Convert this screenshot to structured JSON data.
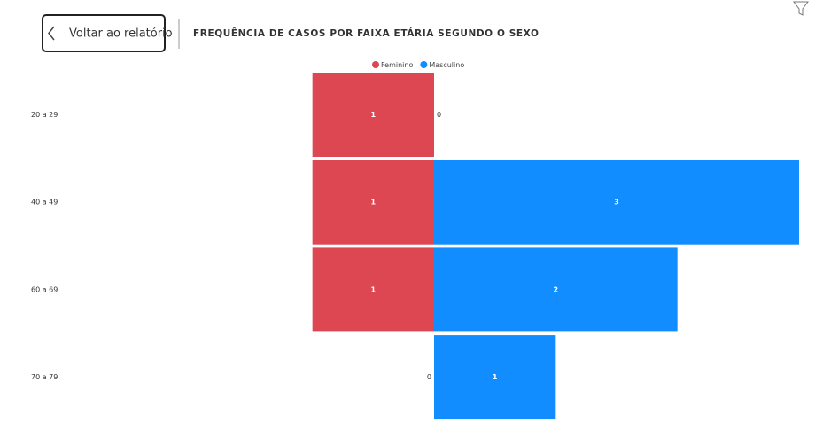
{
  "button": {
    "label": "Voltar ao relatório"
  },
  "chart_data": {
    "type": "butterfly",
    "title": "FREQUÊNCIA DE CASOS POR FAIXA ETÁRIA SEGUNDO O SEXO",
    "categories": [
      "20 a 29",
      "40 a 49",
      "60 a 69",
      "70 a 79"
    ],
    "series": [
      {
        "name": "Feminino",
        "color": "#dc4752",
        "values": [
          1,
          1,
          1,
          0
        ]
      },
      {
        "name": "Masculino",
        "color": "#118dff",
        "values": [
          0,
          3,
          2,
          1
        ]
      }
    ]
  }
}
